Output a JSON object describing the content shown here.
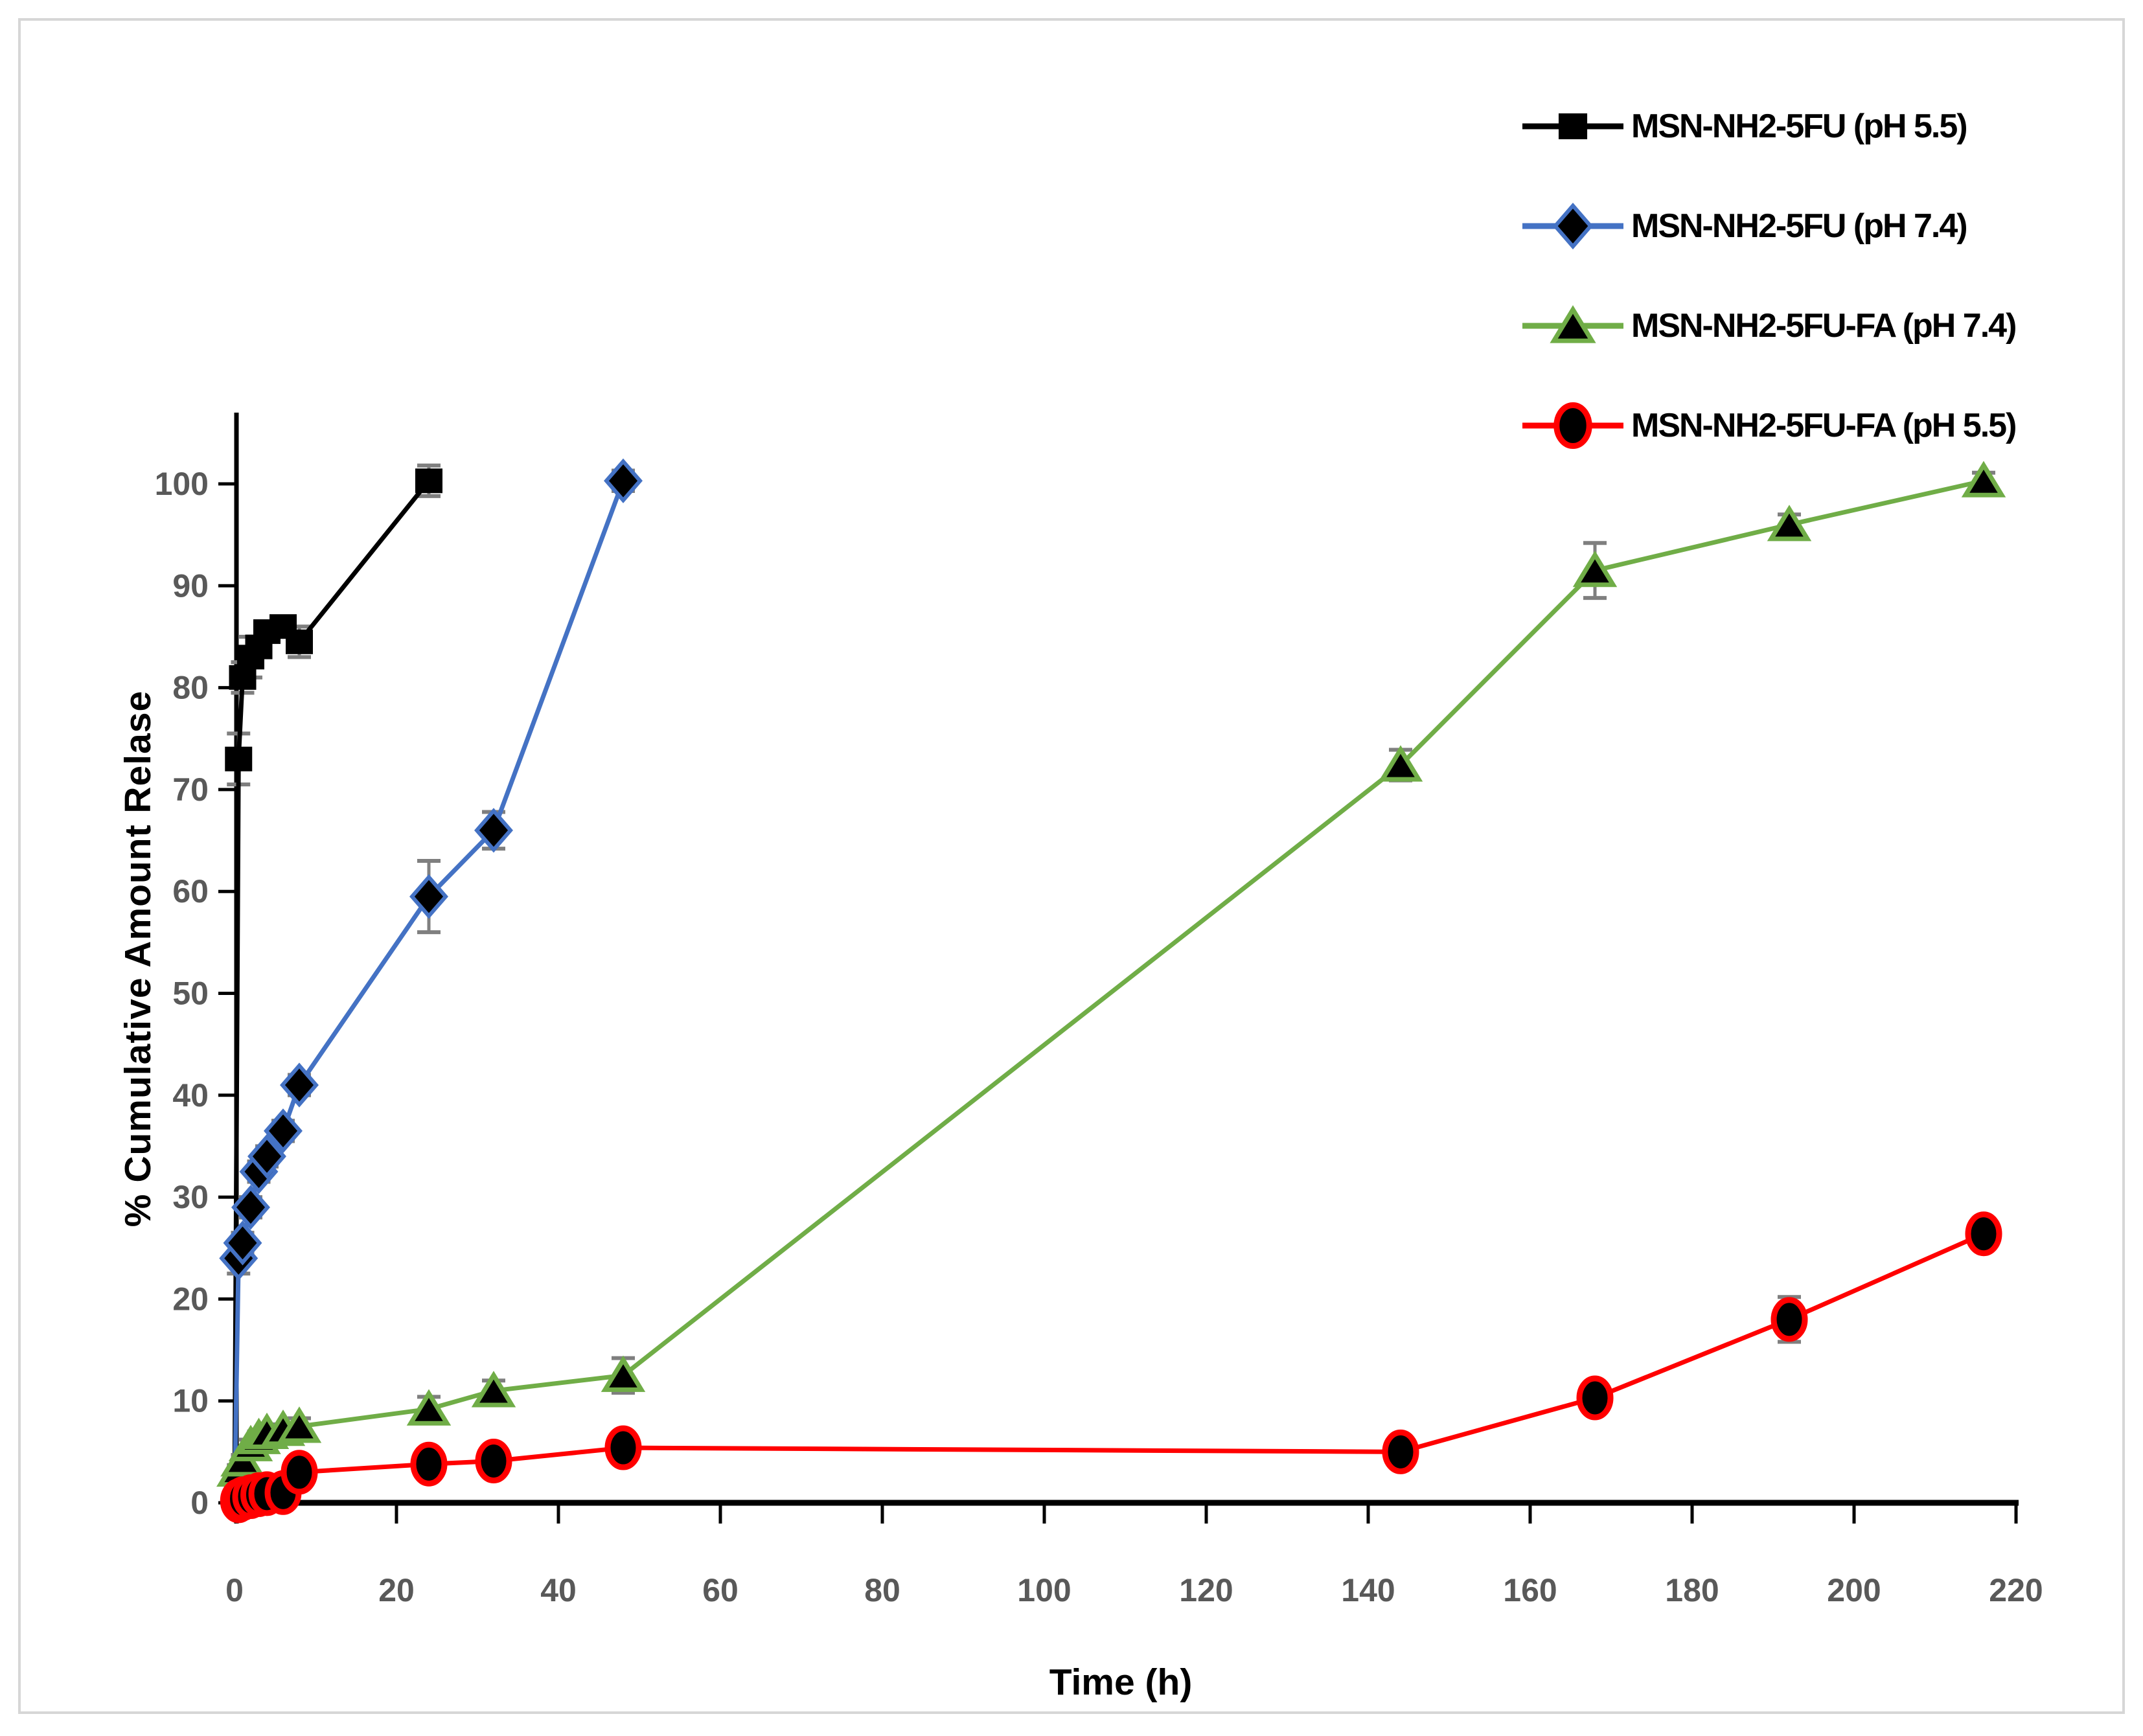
{
  "figure": {
    "background": "#ffffff",
    "border_color": "#d6d6d6"
  },
  "chart_data": {
    "type": "line",
    "title": "",
    "xlabel": "Time (h)",
    "ylabel": "% Cumulative Amount Relase",
    "xlim": [
      0,
      220
    ],
    "ylim": [
      0,
      107
    ],
    "xticks": [
      0,
      20,
      40,
      60,
      80,
      100,
      120,
      140,
      160,
      180,
      200,
      220
    ],
    "yticks": [
      0,
      10,
      20,
      30,
      40,
      50,
      60,
      70,
      80,
      90,
      100
    ],
    "grid": false,
    "legend_position": "top-right",
    "axis_color": "#000000",
    "tick_label_color": "#595959",
    "error_bar_color": "#7f7f7f",
    "series": [
      {
        "name": "MSN-NH2-5FU (pH 5.5)",
        "color": "#000000",
        "marker": "square",
        "x": [
          0,
          0.5,
          1,
          2,
          3,
          4,
          6,
          8,
          24
        ],
        "y": [
          0,
          73,
          81,
          83,
          84,
          85.5,
          86,
          84.5,
          100.3
        ],
        "yerr": [
          0,
          2.5,
          1.5,
          2,
          1,
          1,
          1,
          1.5,
          1.5
        ]
      },
      {
        "name": "MSN-NH2-5FU (pH 7.4)",
        "color": "#4472C4",
        "marker": "diamond",
        "x": [
          0,
          0.5,
          1,
          2,
          3,
          4,
          6,
          8,
          24,
          32,
          48
        ],
        "y": [
          0,
          24,
          25.5,
          29,
          32.5,
          34,
          36.5,
          41,
          59.5,
          66,
          100.3
        ],
        "yerr": [
          0,
          1.5,
          1,
          1,
          1,
          1,
          1,
          1,
          3.5,
          1.8,
          1
        ]
      },
      {
        "name": "MSN-NH2-5FU-FA (pH 7.4)",
        "color": "#70AD47",
        "marker": "triangle",
        "x": [
          0,
          0.5,
          1,
          2,
          3,
          4,
          6,
          8,
          24,
          32,
          48,
          144,
          168,
          192,
          216
        ],
        "y": [
          0,
          3.2,
          4.2,
          5.7,
          6.4,
          6.9,
          7.2,
          7.5,
          9.2,
          11,
          12.5,
          72.4,
          91.5,
          96,
          100.3
        ],
        "yerr": [
          0,
          0.5,
          0.5,
          0.5,
          0.6,
          0.6,
          0.5,
          0.8,
          1.2,
          1,
          1.7,
          1.5,
          2.7,
          1,
          0.8
        ]
      },
      {
        "name": "MSN-NH2-5FU-FA (pH 5.5)",
        "color": "#FF0000",
        "marker": "circle",
        "x": [
          0,
          0.5,
          1,
          2,
          3,
          4,
          6,
          8,
          24,
          32,
          48,
          144,
          168,
          192,
          216
        ],
        "y": [
          0,
          0.2,
          0.4,
          0.6,
          0.8,
          0.9,
          1,
          3,
          3.8,
          4.1,
          5.4,
          5,
          10.3,
          18,
          26.4
        ],
        "yerr": [
          0,
          0,
          0,
          0,
          0,
          0,
          0,
          0,
          0,
          0,
          0,
          0,
          0.9,
          2.2,
          0
        ]
      }
    ]
  }
}
